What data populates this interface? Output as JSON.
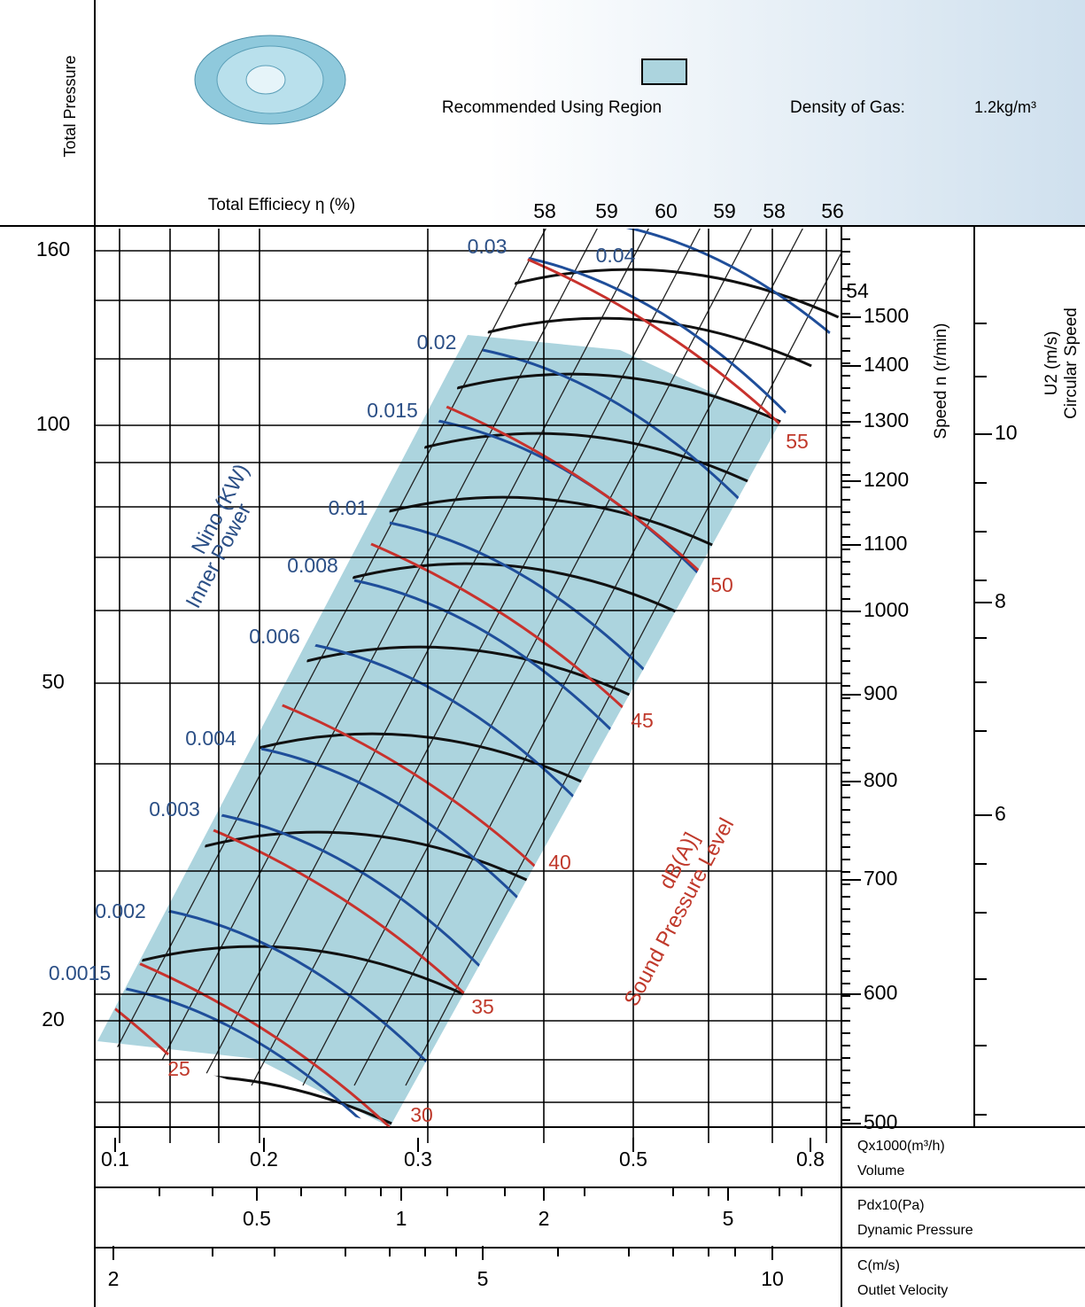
{
  "header": {
    "y_axis_title": "Total Pressure",
    "legend_label": "Recommended Using Region",
    "density_label": "Density of Gas:",
    "density_value": "1.2kg/m³",
    "efficiency_label": "Total Efficiecy η (%)"
  },
  "efficiency_ticks": [
    58,
    59,
    60,
    59,
    58,
    56,
    54
  ],
  "pressure_ticks": [
    160,
    100,
    50,
    20
  ],
  "power_title": [
    "Nino (KW)",
    "Inner Power"
  ],
  "power_labels": [
    0.03,
    0.04,
    0.02,
    0.015,
    0.01,
    0.008,
    0.006,
    0.004,
    0.003,
    0.002,
    0.0015
  ],
  "sound_title": [
    "dB(A)]",
    "Sound Pressure Level"
  ],
  "sound_labels": [
    55,
    50,
    45,
    40,
    35,
    30,
    25
  ],
  "speed_title": "Speed  n (r/min)",
  "speed_ticks": [
    1500,
    1400,
    1300,
    1200,
    1100,
    1000,
    900,
    800,
    700,
    600,
    500
  ],
  "circular_title": [
    "U2 (m/s)",
    "Circular Speed"
  ],
  "circular_ticks": [
    10,
    8,
    6
  ],
  "volume_ticks": [
    0.1,
    0.2,
    0.3,
    0.5,
    0.8
  ],
  "volume_title": [
    "Qx1000(m³/h)",
    "Volume"
  ],
  "dynamic_ticks": [
    0.5,
    1,
    2,
    5
  ],
  "dynamic_title": [
    "Pdx10(Pa)",
    "Dynamic Pressure"
  ],
  "velocity_ticks": [
    2,
    5,
    10
  ],
  "velocity_title": [
    "C(m/s)",
    "Outlet Velocity"
  ]
}
